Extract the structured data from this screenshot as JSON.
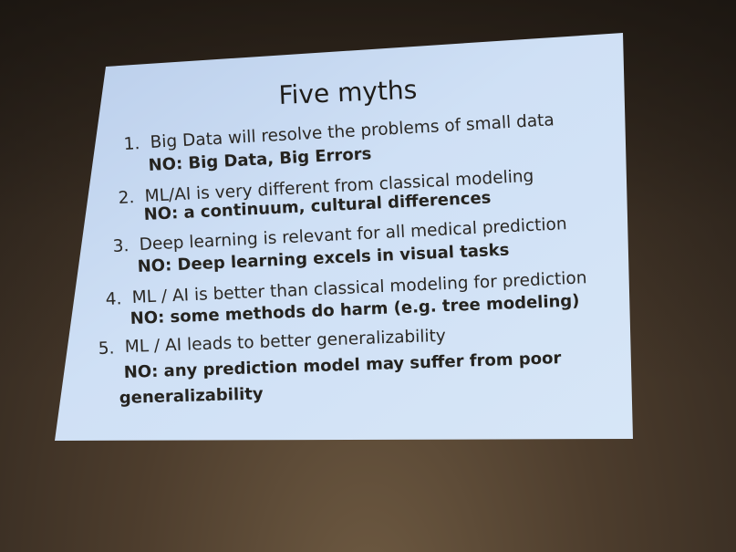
{
  "slide": {
    "title": "Five myths",
    "myths": [
      {
        "number": "1.",
        "statement": "Big Data will resolve the problems of small data",
        "answer_lines": [
          "NO: Big Data, Big Errors"
        ]
      },
      {
        "number": "2.",
        "statement": "ML/AI is very different from classical modeling",
        "answer_lines": [
          "NO: a continuum, cultural differences"
        ]
      },
      {
        "number": "3.",
        "statement": "Deep learning is relevant for all medical prediction",
        "answer_lines": [
          "NO: Deep learning excels in visual tasks"
        ]
      },
      {
        "number": "4.",
        "statement": "ML / AI is better than classical modeling for prediction",
        "answer_lines": [
          "NO: some methods do harm (e.g. tree modeling)"
        ]
      },
      {
        "number": "5.",
        "statement": "ML / AI leads to better generalizability",
        "answer_lines": [
          "NO: any prediction model may suffer from poor",
          "generalizability"
        ]
      }
    ]
  },
  "colors": {
    "slide_background": "#c9dcf3",
    "text": "#25231f",
    "room": "#4d3d2d"
  }
}
